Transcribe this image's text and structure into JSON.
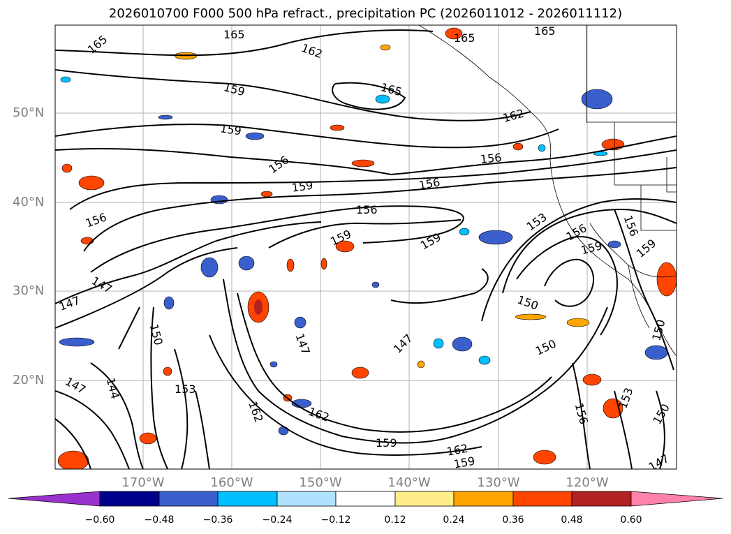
{
  "title": "2026010700 F000 500 hPa refract., precipitation PC (2026011012 - 2026011112)",
  "lat_labels": [
    "50°N",
    "40°N",
    "30°N",
    "20°N"
  ],
  "lon_labels": [
    "170°W",
    "160°W",
    "150°W",
    "140°W",
    "130°W",
    "120°W"
  ],
  "contour_labels": [
    "165",
    "165",
    "162",
    "165",
    "165",
    "159",
    "165",
    "162",
    "159",
    "156",
    "156",
    "159",
    "156",
    "156",
    "153",
    "156",
    "159",
    "159",
    "156",
    "159",
    "159",
    "147",
    "147",
    "156",
    "150",
    "147",
    "147",
    "150",
    "144",
    "153",
    "147",
    "162",
    "162",
    "159",
    "162",
    "159",
    "150",
    "153",
    "156",
    "150",
    "147",
    "150"
  ],
  "colorbar": {
    "ticks": [
      "−0.60",
      "−0.48",
      "−0.36",
      "−0.24",
      "−0.12",
      "0.12",
      "0.24",
      "0.36",
      "0.48",
      "0.60"
    ],
    "colors": [
      "#9932cc",
      "#00008b",
      "#3a5fcd",
      "#00bfff",
      "#b0e2ff",
      "#ffffff",
      "#ffec8b",
      "#ffa500",
      "#ff4500",
      "#b22222",
      "#ff82ab"
    ]
  }
}
